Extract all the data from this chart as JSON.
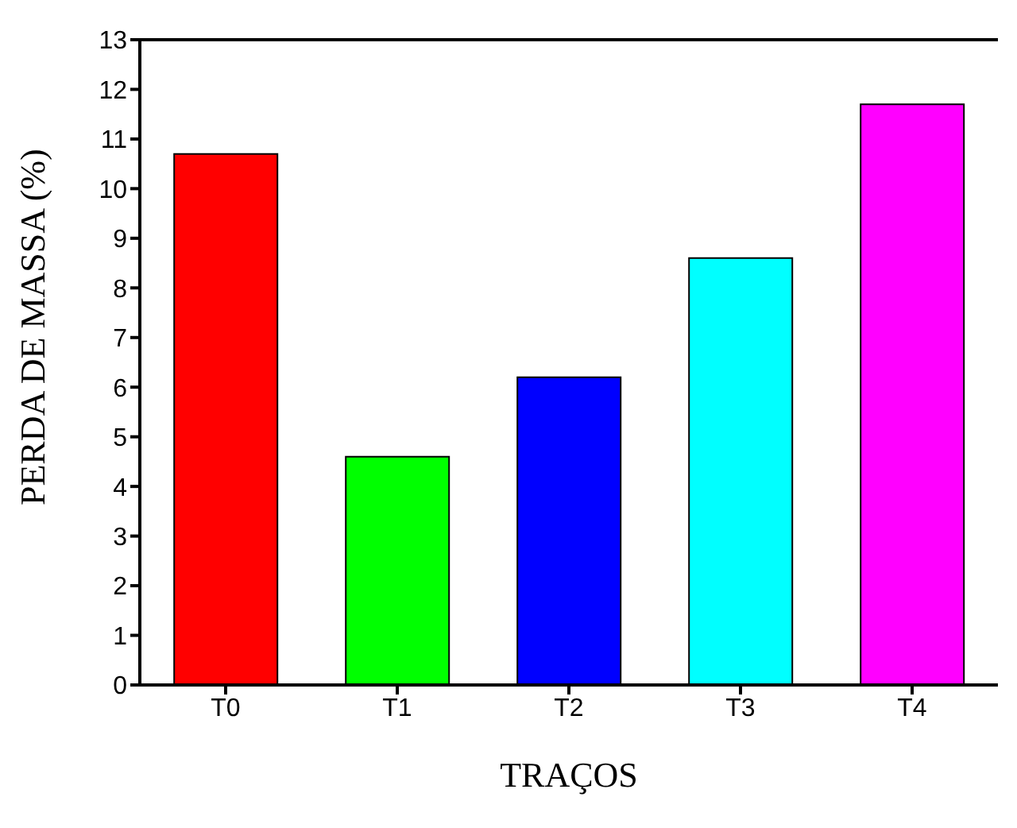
{
  "chart_data": {
    "type": "bar",
    "xlabel": "TRAÇOS",
    "ylabel": "PERDA DE MASSA (%)",
    "categories": [
      "T0",
      "T1",
      "T2",
      "T3",
      "T4"
    ],
    "values": [
      10.7,
      4.6,
      6.2,
      8.6,
      11.7
    ],
    "colors": [
      "#ff0000",
      "#00ff00",
      "#0000ff",
      "#00ffff",
      "#ff00ff"
    ],
    "ylim": [
      0,
      13
    ],
    "yticks": [
      0,
      1,
      2,
      3,
      4,
      5,
      6,
      7,
      8,
      9,
      10,
      11,
      12,
      13
    ],
    "grid": false,
    "legend": false
  }
}
